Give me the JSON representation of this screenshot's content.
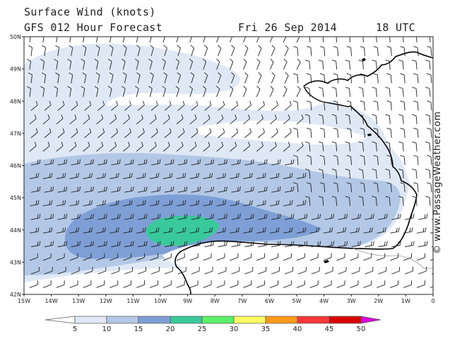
{
  "header": {
    "title_line1": "Surface Wind (knots)",
    "title_line2": "GFS 012 Hour Forecast",
    "date": "Fri 26 Sep 2014",
    "time": "18 UTC"
  },
  "credit": "© www.PassageWeather.com",
  "axes": {
    "lat_labels": [
      "50N",
      "49N",
      "48N",
      "47N",
      "46N",
      "45N",
      "44N",
      "43N",
      "42N"
    ],
    "lon_labels": [
      "15W",
      "14W",
      "13W",
      "12W",
      "11W",
      "10W",
      "9W",
      "8W",
      "7W",
      "6W",
      "5W",
      "4W",
      "3W",
      "2W",
      "1W",
      "0"
    ]
  },
  "legend": {
    "labels": [
      "5",
      "10",
      "15",
      "20",
      "25",
      "30",
      "35",
      "40",
      "45",
      "50"
    ],
    "colors": [
      "#ffffff",
      "#dfe8f5",
      "#b3c8e6",
      "#7e9fd6",
      "#39c99a",
      "#5cf06a",
      "#fbfb62",
      "#ff9a1a",
      "#ff3838",
      "#d80000",
      "#d800d8"
    ]
  },
  "palette": {
    "sea_base": "#ffffff",
    "band_5_10": "#dfe8f5",
    "band_10_15": "#b3c8e6",
    "band_15_20": "#7e9fd6",
    "band_20_25": "#39c99a",
    "coast": "#000000",
    "barb": "#222222"
  }
}
